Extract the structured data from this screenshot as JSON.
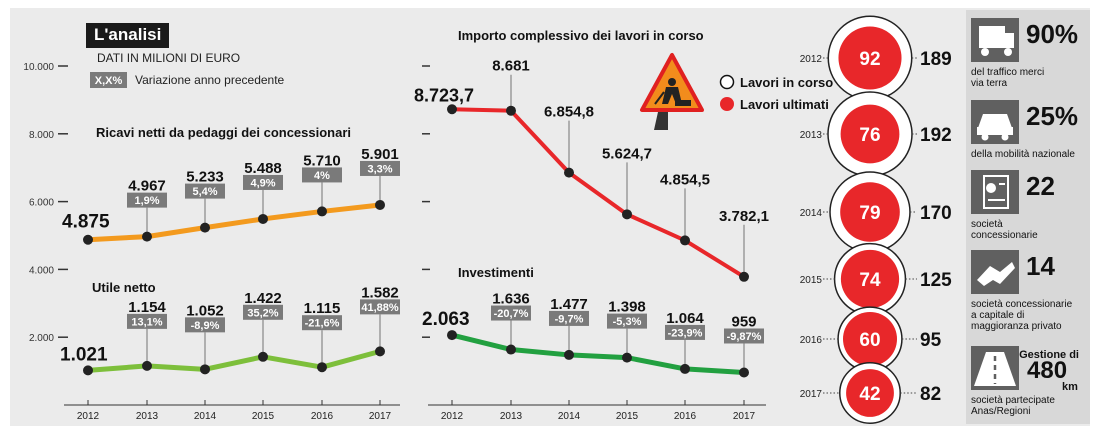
{
  "header": {
    "title": "L'analisi",
    "units": "DATI IN MILIONI DI EURO",
    "legend_badge": "X,X%",
    "legend_text": "Variazione anno precedente"
  },
  "sidebar": {
    "items": [
      {
        "icon": "truck-icon",
        "value": "90%",
        "caption": [
          "del traffico merci",
          "via terra"
        ]
      },
      {
        "icon": "car-icon",
        "value": "25%",
        "caption": [
          "della mobilità nazionale"
        ]
      },
      {
        "icon": "certificate-icon",
        "value": "22",
        "caption": [
          "società",
          "concessionarie"
        ]
      },
      {
        "icon": "handshake-icon",
        "value": "14",
        "caption": [
          "società concessionarie",
          "a capitale di",
          "maggioranza privato"
        ]
      },
      {
        "icon": "road-icon",
        "pre": "Gestione di",
        "value": "480",
        "unit": "km",
        "caption": [
          "società partecipate",
          "Anas/Regioni"
        ]
      }
    ]
  },
  "chart_data": [
    {
      "type": "line",
      "title": "Ricavi netti da pedaggi dei concessionari",
      "x": [
        "2012",
        "2013",
        "2014",
        "2015",
        "2016",
        "2017"
      ],
      "values": [
        4875,
        4967,
        5233,
        5488,
        5710,
        5901
      ],
      "labels": [
        "4.875",
        "4.967",
        "5.233",
        "5.488",
        "5.710",
        "5.901"
      ],
      "changes": [
        "",
        "1,9%",
        "5,4%",
        "4,9%",
        "4%",
        "3,3%"
      ],
      "color": "#f39a1e",
      "ylim": [
        0,
        10000
      ],
      "yticks": [
        "2.000",
        "4.000",
        "6.000",
        "8.000",
        "10.000"
      ]
    },
    {
      "type": "line",
      "title": "Utile netto",
      "x": [
        "2012",
        "2013",
        "2014",
        "2015",
        "2016",
        "2017"
      ],
      "values": [
        1021,
        1154,
        1052,
        1422,
        1115,
        1582
      ],
      "labels": [
        "1.021",
        "1.154",
        "1.052",
        "1.422",
        "1.115",
        "1.582"
      ],
      "changes": [
        "",
        "13,1%",
        "-8,9%",
        "35,2%",
        "-21,6%",
        "41,88%"
      ],
      "color": "#7dbf3b"
    },
    {
      "type": "line",
      "title": "Importo complessivo dei lavori in corso",
      "x": [
        "2012",
        "2013",
        "2014",
        "2015",
        "2016",
        "2017"
      ],
      "values": [
        8723.7,
        8681,
        6854.8,
        5624.7,
        4854.5,
        3782.1
      ],
      "labels": [
        "8.723,7",
        "8.681",
        "6.854,8",
        "5.624,7",
        "4.854,5",
        "3.782,1"
      ],
      "color": "#e8272a"
    },
    {
      "type": "line",
      "title": "Investimenti",
      "x": [
        "2012",
        "2013",
        "2014",
        "2015",
        "2016",
        "2017"
      ],
      "values": [
        2063,
        1636,
        1477,
        1398,
        1064,
        959
      ],
      "labels": [
        "2.063",
        "1.636",
        "1.477",
        "1.398",
        "1.064",
        "959"
      ],
      "changes": [
        "",
        "-20,7%",
        "-9,7%",
        "-5,3%",
        "-23,9%",
        "-9,87%"
      ],
      "color": "#22a040"
    },
    {
      "type": "bubble",
      "legend": [
        "Lavori in corso",
        "Lavori ultimati"
      ],
      "rows": [
        {
          "year": "2012",
          "in_corso": 189,
          "ultimati": 92
        },
        {
          "year": "2013",
          "in_corso": 192,
          "ultimati": 76
        },
        {
          "year": "2014",
          "in_corso": 170,
          "ultimati": 79
        },
        {
          "year": "2015",
          "in_corso": 125,
          "ultimati": 74
        },
        {
          "year": "2016",
          "in_corso": 95,
          "ultimati": 60
        },
        {
          "year": "2017",
          "in_corso": 82,
          "ultimati": 42
        }
      ]
    }
  ]
}
